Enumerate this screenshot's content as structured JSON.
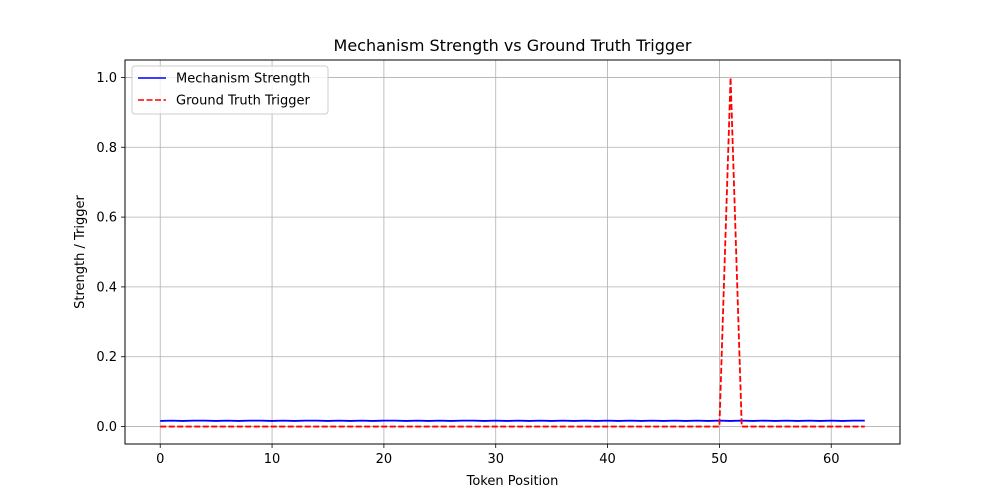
{
  "chart_data": {
    "type": "line",
    "title": "Mechanism Strength vs Ground Truth Trigger",
    "xlabel": "Token Position",
    "ylabel": "Strength / Trigger",
    "xlim": [
      -3.15,
      66.15
    ],
    "ylim": [
      -0.05,
      1.05
    ],
    "xticks": [
      "0",
      "10",
      "20",
      "30",
      "40",
      "50",
      "60"
    ],
    "yticks": [
      "0.0",
      "0.2",
      "0.4",
      "0.6",
      "0.8",
      "1.0"
    ],
    "grid": true,
    "legend_position": "top-left",
    "series": [
      {
        "name": "Mechanism Strength",
        "color": "#0000ff",
        "style": "solid",
        "x": [
          0,
          1,
          2,
          3,
          4,
          5,
          6,
          7,
          8,
          9,
          10,
          11,
          12,
          13,
          14,
          15,
          16,
          17,
          18,
          19,
          20,
          21,
          22,
          23,
          24,
          25,
          26,
          27,
          28,
          29,
          30,
          31,
          32,
          33,
          34,
          35,
          36,
          37,
          38,
          39,
          40,
          41,
          42,
          43,
          44,
          45,
          46,
          47,
          48,
          49,
          50,
          51,
          52,
          53,
          54,
          55,
          56,
          57,
          58,
          59,
          60,
          61,
          62,
          63
        ],
        "values": [
          0.016,
          0.017,
          0.016,
          0.017,
          0.017,
          0.016,
          0.017,
          0.016,
          0.017,
          0.017,
          0.016,
          0.017,
          0.016,
          0.017,
          0.017,
          0.016,
          0.017,
          0.016,
          0.017,
          0.016,
          0.017,
          0.017,
          0.016,
          0.017,
          0.016,
          0.017,
          0.016,
          0.017,
          0.017,
          0.016,
          0.017,
          0.016,
          0.017,
          0.016,
          0.017,
          0.016,
          0.017,
          0.016,
          0.017,
          0.016,
          0.017,
          0.016,
          0.017,
          0.016,
          0.017,
          0.016,
          0.017,
          0.016,
          0.017,
          0.016,
          0.017,
          0.016,
          0.017,
          0.016,
          0.017,
          0.016,
          0.017,
          0.016,
          0.017,
          0.016,
          0.017,
          0.016,
          0.017,
          0.017
        ]
      },
      {
        "name": "Ground Truth Trigger",
        "color": "#ff0000",
        "style": "dashed",
        "x": [
          0,
          1,
          2,
          3,
          4,
          5,
          6,
          7,
          8,
          9,
          10,
          11,
          12,
          13,
          14,
          15,
          16,
          17,
          18,
          19,
          20,
          21,
          22,
          23,
          24,
          25,
          26,
          27,
          28,
          29,
          30,
          31,
          32,
          33,
          34,
          35,
          36,
          37,
          38,
          39,
          40,
          41,
          42,
          43,
          44,
          45,
          46,
          47,
          48,
          49,
          50,
          51,
          52,
          53,
          54,
          55,
          56,
          57,
          58,
          59,
          60,
          61,
          62,
          63
        ],
        "values": [
          0,
          0,
          0,
          0,
          0,
          0,
          0,
          0,
          0,
          0,
          0,
          0,
          0,
          0,
          0,
          0,
          0,
          0,
          0,
          0,
          0,
          0,
          0,
          0,
          0,
          0,
          0,
          0,
          0,
          0,
          0,
          0,
          0,
          0,
          0,
          0,
          0,
          0,
          0,
          0,
          0,
          0,
          0,
          0,
          0,
          0,
          0,
          0,
          0,
          0,
          0,
          1,
          0,
          0,
          0,
          0,
          0,
          0,
          0,
          0,
          0,
          0,
          0,
          0
        ]
      }
    ]
  }
}
